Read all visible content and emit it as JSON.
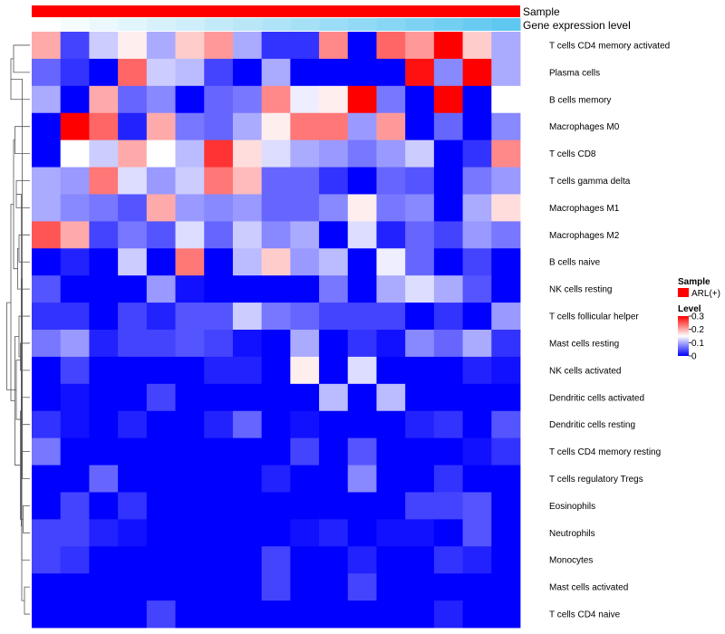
{
  "chart_data": {
    "type": "heatmap",
    "title": "",
    "rows": [
      "T cells CD4 memory activated",
      "Plasma cells",
      "B cells memory",
      "Macrophages M0",
      "T cells CD8",
      "T cells gamma delta",
      "Macrophages M1",
      "Macrophages M2",
      "B cells naive",
      "NK cells resting",
      "T cells follicular helper",
      "Mast cells resting",
      "NK cells activated",
      "Dendritic cells activated",
      "Dendritic cells resting",
      "T cells CD4 memory resting",
      "T cells regulatory  Tregs",
      "Eosinophils",
      "Neutrophils",
      "Monocytes",
      "Mast cells activated",
      "T cells CD4 naive"
    ],
    "values": [
      [
        0.2,
        0.04,
        0.12,
        0.16,
        0.1,
        0.18,
        0.21,
        0.1,
        0.03,
        0.03,
        0.22,
        0.0,
        0.24,
        0.21,
        0.3,
        0.18,
        0.1
      ],
      [
        0.06,
        0.03,
        0.0,
        0.24,
        0.12,
        0.11,
        0.04,
        0.0,
        0.1,
        0.0,
        0.0,
        0.0,
        0.0,
        0.29,
        0.08,
        0.3,
        0.1
      ],
      [
        0.1,
        0.0,
        0.2,
        0.06,
        0.08,
        0.0,
        0.06,
        0.07,
        0.22,
        0.14,
        0.16,
        0.3,
        0.07,
        0.0,
        0.3,
        0.0,
        0.15
      ],
      [
        0.0,
        0.3,
        0.24,
        0.02,
        0.2,
        0.07,
        0.06,
        0.1,
        0.16,
        0.23,
        0.23,
        0.09,
        0.21,
        0.0,
        0.06,
        0.0,
        0.08
      ],
      [
        0.0,
        0.15,
        0.12,
        0.2,
        0.15,
        0.11,
        0.27,
        0.17,
        0.13,
        0.1,
        0.09,
        0.07,
        0.09,
        0.12,
        0.0,
        0.03,
        0.22
      ],
      [
        0.1,
        0.09,
        0.23,
        0.13,
        0.09,
        0.12,
        0.23,
        0.19,
        0.06,
        0.06,
        0.03,
        0.0,
        0.06,
        0.05,
        0.0,
        0.07,
        0.09
      ],
      [
        0.1,
        0.08,
        0.07,
        0.05,
        0.2,
        0.09,
        0.08,
        0.09,
        0.06,
        0.06,
        0.08,
        0.16,
        0.07,
        0.08,
        0.0,
        0.1,
        0.17
      ],
      [
        0.25,
        0.2,
        0.04,
        0.07,
        0.05,
        0.13,
        0.06,
        0.12,
        0.08,
        0.1,
        0.0,
        0.13,
        0.02,
        0.06,
        0.04,
        0.09,
        0.07
      ],
      [
        0.0,
        0.02,
        0.0,
        0.12,
        0.0,
        0.23,
        0.0,
        0.11,
        0.18,
        0.09,
        0.11,
        0.0,
        0.14,
        0.06,
        0.0,
        0.04,
        0.0
      ],
      [
        0.05,
        0.0,
        0.0,
        0.0,
        0.09,
        0.01,
        0.0,
        0.0,
        0.0,
        0.0,
        0.07,
        0.0,
        0.1,
        0.13,
        0.1,
        0.05,
        0.0
      ],
      [
        0.03,
        0.03,
        0.0,
        0.04,
        0.02,
        0.05,
        0.05,
        0.12,
        0.07,
        0.06,
        0.04,
        0.04,
        0.04,
        0.0,
        0.03,
        0.0,
        0.09
      ],
      [
        0.07,
        0.09,
        0.02,
        0.04,
        0.04,
        0.05,
        0.04,
        0.01,
        0.0,
        0.1,
        0.0,
        0.03,
        0.01,
        0.08,
        0.06,
        0.1,
        0.03
      ],
      [
        0.0,
        0.04,
        0.0,
        0.0,
        0.0,
        0.0,
        0.02,
        0.02,
        0.0,
        0.16,
        0.0,
        0.13,
        0.0,
        0.0,
        0.0,
        0.02,
        0.01
      ],
      [
        0.0,
        0.01,
        0.0,
        0.0,
        0.04,
        0.0,
        0.0,
        0.0,
        0.0,
        0.0,
        0.11,
        0.0,
        0.11,
        0.0,
        0.0,
        0.0,
        0.0
      ],
      [
        0.03,
        0.01,
        0.0,
        0.02,
        0.0,
        0.0,
        0.02,
        0.06,
        0.0,
        0.01,
        0.0,
        0.0,
        0.0,
        0.02,
        0.03,
        0.0,
        0.05
      ],
      [
        0.07,
        0.0,
        0.0,
        0.0,
        0.0,
        0.0,
        0.0,
        0.0,
        0.0,
        0.04,
        0.0,
        0.05,
        0.0,
        0.0,
        0.0,
        0.01,
        0.03
      ],
      [
        0.0,
        0.0,
        0.06,
        0.0,
        0.0,
        0.0,
        0.0,
        0.0,
        0.02,
        0.0,
        0.0,
        0.08,
        0.0,
        0.0,
        0.03,
        0.0,
        0.0
      ],
      [
        0.0,
        0.04,
        0.0,
        0.03,
        0.0,
        0.0,
        0.0,
        0.0,
        0.0,
        0.0,
        0.0,
        0.0,
        0.0,
        0.04,
        0.04,
        0.05,
        0.0
      ],
      [
        0.04,
        0.04,
        0.02,
        0.01,
        0.0,
        0.0,
        0.0,
        0.0,
        0.0,
        0.01,
        0.02,
        0.0,
        0.01,
        0.01,
        0.0,
        0.05,
        0.0
      ],
      [
        0.04,
        0.03,
        0.0,
        0.0,
        0.0,
        0.0,
        0.0,
        0.0,
        0.04,
        0.0,
        0.0,
        0.02,
        0.0,
        0.0,
        0.03,
        0.02,
        0.0
      ],
      [
        0.0,
        0.0,
        0.0,
        0.0,
        0.0,
        0.0,
        0.0,
        0.0,
        0.04,
        0.0,
        0.0,
        0.04,
        0.0,
        0.0,
        0.0,
        0.0,
        0.0
      ],
      [
        0.0,
        0.0,
        0.0,
        0.0,
        0.04,
        0.0,
        0.0,
        0.0,
        0.0,
        0.0,
        0.0,
        0.0,
        0.0,
        0.0,
        0.02,
        0.0,
        0.0
      ]
    ],
    "column_count": 17,
    "annotation_tracks": [
      {
        "label": "Sample",
        "type": "constant",
        "color": "#FF0000"
      },
      {
        "label": "Gene expression level",
        "type": "gradient",
        "from": "#FFFFFF",
        "to": "#5FC8F0"
      }
    ],
    "color_scale": {
      "low": "#0000FF",
      "mid": "#FFFFFF",
      "high": "#FF0000",
      "min": 0,
      "mid_value": 0.15,
      "max": 0.3
    },
    "dendrogram": {
      "order": [
        0,
        1,
        2,
        3,
        4,
        5,
        6,
        7,
        8,
        9,
        10,
        11,
        12,
        13,
        14,
        15,
        16,
        17,
        18,
        19,
        20,
        21
      ],
      "merges": [
        [
          0,
          1,
          0.6
        ],
        [
          3,
          4,
          0.55
        ],
        [
          7,
          8,
          0.4
        ],
        [
          11,
          12,
          0.35
        ],
        [
          13,
          14,
          0.3
        ],
        [
          17,
          18,
          0.25
        ],
        [
          20,
          21,
          0.2
        ],
        [
          2,
          "m0",
          0.7
        ],
        [
          5,
          6,
          0.5
        ],
        [
          "m2",
          9,
          0.45
        ],
        [
          "m3",
          10,
          0.4
        ],
        [
          "m4",
          "m5",
          0.35
        ],
        [
          "m6",
          15,
          0.3
        ],
        [
          "m7",
          16,
          0.28
        ],
        [
          "m12",
          "m8",
          0.32
        ],
        [
          "m13",
          19,
          0.3
        ],
        [
          "m14",
          "m15",
          0.5
        ],
        [
          "m1",
          "m9",
          0.6
        ],
        [
          "m10",
          "m11",
          0.55
        ],
        [
          "m17",
          "m18",
          0.7
        ],
        [
          "m16",
          "m19",
          0.85
        ]
      ]
    },
    "legend": {
      "sample_title": "Sample",
      "sample_entry": "ARL(+)",
      "sample_color": "#FF0000",
      "level_title": "Level",
      "ticks": [
        "0.3",
        "0.2",
        "0.1",
        "0"
      ],
      "tick_values": [
        0.3,
        0.2,
        0.1,
        0
      ]
    }
  }
}
